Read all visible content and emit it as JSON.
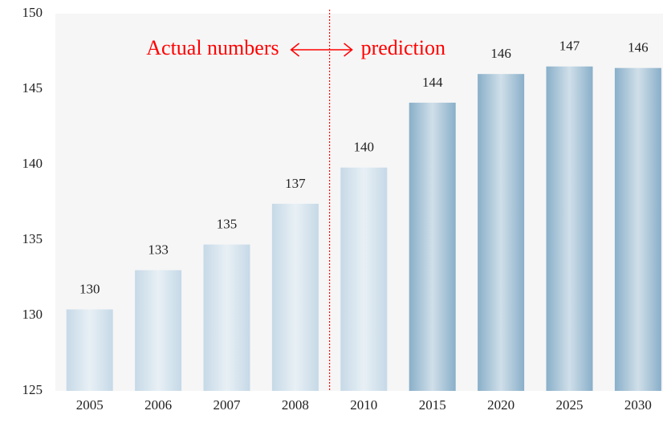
{
  "chart_data": {
    "type": "bar",
    "categories": [
      "2005",
      "2006",
      "2007",
      "2008",
      "2010",
      "2015",
      "2020",
      "2025",
      "2030"
    ],
    "values": [
      130.4,
      133.0,
      134.7,
      137.4,
      139.8,
      144.1,
      146.0,
      146.5,
      146.4
    ],
    "value_labels": [
      "130",
      "133",
      "135",
      "137",
      "140",
      "144",
      "146",
      "147",
      "146"
    ],
    "colors": [
      "#c6d9e7",
      "#c6d9e7",
      "#c6d9e7",
      "#c6d9e7",
      "#c6d9e7",
      "#89afc9",
      "#89afc9",
      "#89afc9",
      "#89afc9"
    ],
    "ylim": [
      125,
      150
    ],
    "yticks": [
      125,
      130,
      135,
      140,
      145,
      150
    ],
    "annotations": [
      "Actual numbers",
      "prediction"
    ],
    "annotation_color": "#ff0000"
  }
}
